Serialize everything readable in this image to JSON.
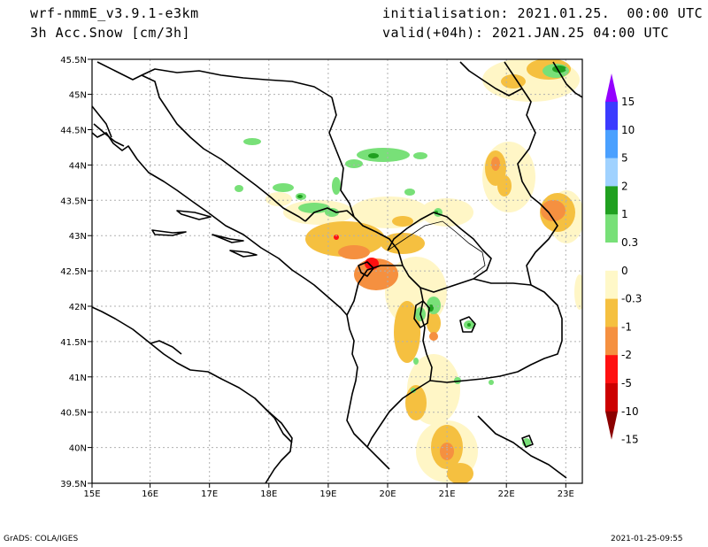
{
  "header": {
    "model": "wrf-nmmE_v3.9.1-e3km",
    "variable": "3h Acc.Snow [cm/3h]",
    "init": "initialisation: 2021.01.25.  00:00 UTC",
    "valid": "valid(+04h): 2021.JAN.25 04:00 UTC"
  },
  "footer": {
    "credit": "GrADS: COLA/IGES",
    "timestamp": "2021-01-25-09:55"
  },
  "map": {
    "lat_labels": [
      "45.5N",
      "45N",
      "44.5N",
      "44N",
      "43.5N",
      "43N",
      "42.5N",
      "42N",
      "41.5N",
      "41N",
      "40.5N",
      "40N",
      "39.5N"
    ],
    "lon_labels": [
      "15E",
      "16E",
      "17E",
      "18E",
      "19E",
      "20E",
      "21E",
      "22E",
      "23E"
    ]
  },
  "colorbar": {
    "labels": [
      "15",
      "10",
      "5",
      "2",
      "1",
      "0.3",
      "0",
      "-0.3",
      "-1",
      "-2",
      "-5",
      "-10",
      "-15"
    ],
    "colors": [
      "#9400ff",
      "#3b3bff",
      "#4aa0ff",
      "#a0d2ff",
      "#20a020",
      "#78e078",
      "#ffffff",
      "#fff8c8",
      "#f5c040",
      "#f59040",
      "#ff1010",
      "#cc0000",
      "#8b0000"
    ]
  }
}
